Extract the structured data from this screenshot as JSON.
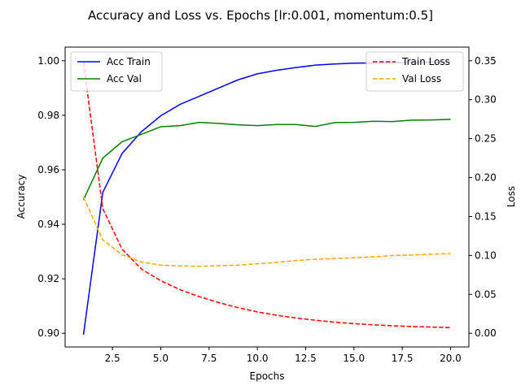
{
  "chart_data": {
    "type": "line",
    "title": "Accuracy and Loss vs. Epochs [lr:0.001, momentum:0.5]",
    "xlabel": "Epochs",
    "ylabel_left": "Accuracy",
    "ylabel_right": "Loss",
    "x": [
      1,
      2,
      3,
      4,
      5,
      6,
      7,
      8,
      9,
      10,
      11,
      12,
      13,
      14,
      15,
      16,
      17,
      18,
      19,
      20
    ],
    "xlim": [
      0.05,
      20.95
    ],
    "ylim_left": [
      0.895,
      1.005
    ],
    "ylim_right": [
      -0.0175,
      0.3675
    ],
    "x_ticks": [
      2.5,
      5.0,
      7.5,
      10.0,
      12.5,
      15.0,
      17.5,
      20.0
    ],
    "x_tick_labels": [
      "2.5",
      "5.0",
      "7.5",
      "10.0",
      "12.5",
      "15.0",
      "17.5",
      "20.0"
    ],
    "y_left_ticks": [
      0.9,
      0.92,
      0.94,
      0.96,
      0.98,
      1.0
    ],
    "y_left_tick_labels": [
      "0.90",
      "0.92",
      "0.94",
      "0.96",
      "0.98",
      "1.00"
    ],
    "y_right_ticks": [
      0.0,
      0.05,
      0.1,
      0.15,
      0.2,
      0.25,
      0.3,
      0.35
    ],
    "y_right_tick_labels": [
      "0.00",
      "0.05",
      "0.10",
      "0.15",
      "0.20",
      "0.25",
      "0.30",
      "0.35"
    ],
    "grid": false,
    "legend_left_placement": "upper-left",
    "legend_right_placement": "upper-right",
    "series": [
      {
        "name": "Acc Train",
        "axis": "left",
        "color": "#0000ff",
        "dash": "solid",
        "values": [
          0.8995,
          0.9517,
          0.966,
          0.974,
          0.9798,
          0.984,
          0.987,
          0.99,
          0.993,
          0.9952,
          0.9965,
          0.9975,
          0.9984,
          0.9988,
          0.9991,
          0.9992,
          0.9993,
          0.9994,
          0.9995,
          0.9996
        ]
      },
      {
        "name": "Acc Val",
        "axis": "left",
        "color": "#008000",
        "dash": "solid",
        "values": [
          0.949,
          0.9643,
          0.9703,
          0.973,
          0.9758,
          0.9762,
          0.9774,
          0.977,
          0.9765,
          0.9762,
          0.9766,
          0.9766,
          0.9759,
          0.9773,
          0.9774,
          0.9778,
          0.9777,
          0.9782,
          0.9783,
          0.9785
        ]
      },
      {
        "name": "Train Loss",
        "axis": "right",
        "color": "#ff0000",
        "dash": "dashed",
        "values": [
          0.348,
          0.16,
          0.108,
          0.0825,
          0.0675,
          0.056,
          0.047,
          0.0395,
          0.033,
          0.0275,
          0.0232,
          0.0197,
          0.0168,
          0.0143,
          0.0124,
          0.0109,
          0.0097,
          0.0087,
          0.008,
          0.0074
        ]
      },
      {
        "name": "Val Loss",
        "axis": "right",
        "color": "#ffa500",
        "dash": "dashed",
        "values": [
          0.175,
          0.12,
          0.101,
          0.0915,
          0.0875,
          0.0865,
          0.086,
          0.0868,
          0.0875,
          0.0893,
          0.091,
          0.0935,
          0.095,
          0.096,
          0.097,
          0.0982,
          0.0998,
          0.1005,
          0.1018,
          0.1023
        ]
      }
    ]
  }
}
